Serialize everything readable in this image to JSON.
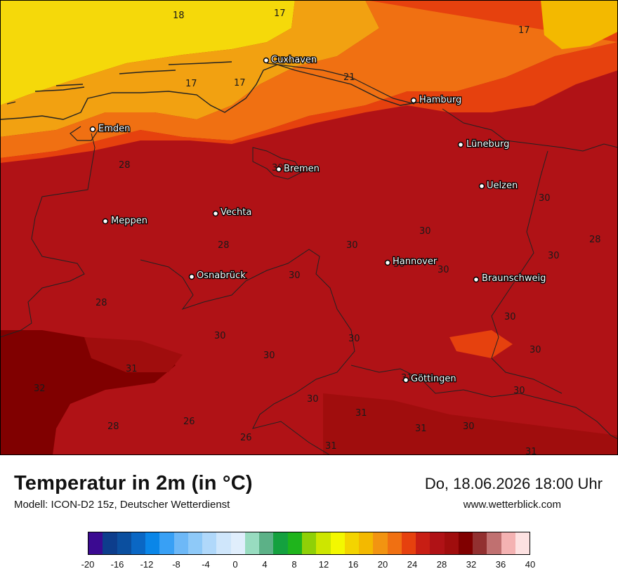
{
  "header": {
    "title": "Temperatur in 2m (in °C)",
    "model": "Modell: ICON-D2 15z, Deutscher Wetterdienst",
    "datetime": "Do, 18.06.2026 18:00 Uhr",
    "website": "www.wetterblick.com"
  },
  "cities": [
    {
      "name": "Cuxhaven"
    },
    {
      "name": "Hamburg"
    },
    {
      "name": "Emden"
    },
    {
      "name": "Lüneburg"
    },
    {
      "name": "Bremen"
    },
    {
      "name": "Uelzen"
    },
    {
      "name": "Vechta"
    },
    {
      "name": "Meppen"
    },
    {
      "name": "Hannover"
    },
    {
      "name": "Osnabrück"
    },
    {
      "name": "Braunschweig"
    },
    {
      "name": "Göttingen"
    }
  ],
  "isotherm_labels": [
    "18",
    "17",
    "17",
    "17",
    "17",
    "21",
    "28",
    "28",
    "28",
    "30",
    "30",
    "30",
    "30",
    "30",
    "30",
    "30",
    "28",
    "30",
    "30",
    "30",
    "30",
    "30",
    "31",
    "32",
    "28",
    "26",
    "26",
    "30",
    "31",
    "31",
    "30",
    "31",
    "31",
    "31",
    "30",
    "30"
  ],
  "legend": {
    "ticks": [
      "-20",
      "-16",
      "-12",
      "-8",
      "-4",
      "0",
      "4",
      "8",
      "12",
      "16",
      "20",
      "24",
      "28",
      "32",
      "36",
      "40"
    ],
    "colors": [
      "#3b0a91",
      "#0d3d8c",
      "#0b4f9f",
      "#0a67c4",
      "#0a86e8",
      "#38a0f5",
      "#6db8f7",
      "#8ec9f8",
      "#b0d8fa",
      "#cfe6fb",
      "#e0eefc",
      "#98dcc0",
      "#5cb187",
      "#14a13f",
      "#1fb41c",
      "#8fd007",
      "#cde600",
      "#f3f800",
      "#f3d400",
      "#f3b900",
      "#f29411",
      "#f07012",
      "#e6410e",
      "#c81e14",
      "#b01216",
      "#a00d0d",
      "#800000",
      "#923030",
      "#c07070",
      "#f4b2b2",
      "#fde1e1"
    ]
  }
}
